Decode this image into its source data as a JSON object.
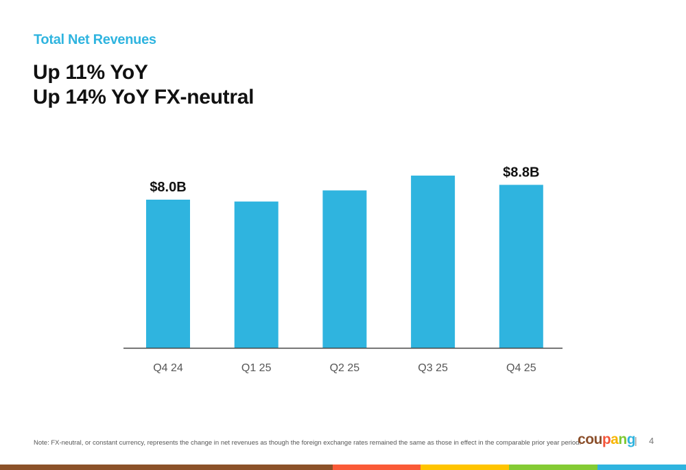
{
  "header": {
    "kicker": "Total Net Revenues",
    "headline_lines": [
      "Up 11% YoY",
      "Up 14% YoY FX-neutral"
    ]
  },
  "chart_data": {
    "type": "bar",
    "title": "Total Net Revenues",
    "categories": [
      "Q4 24",
      "Q1 25",
      "Q2 25",
      "Q3 25",
      "Q4 25"
    ],
    "values": [
      8.0,
      7.9,
      8.5,
      9.3,
      8.8
    ],
    "unit": "$B",
    "data_labels": [
      "$8.0B",
      "",
      "",
      "",
      "$8.8B"
    ],
    "xlabel": "",
    "ylabel": "",
    "ylim": [
      0,
      10
    ],
    "grid": false,
    "bar_color": "#2fb4df"
  },
  "footer": {
    "note": "Note: FX-neutral, or constant currency, represents the change in net revenues as though the foreign exchange rates remained the same as those in effect in the comparable prior year period.",
    "logo_letters": [
      {
        "ch": "c",
        "color": "#8b4f2b"
      },
      {
        "ch": "o",
        "color": "#8b4f2b"
      },
      {
        "ch": "u",
        "color": "#8b4f2b"
      },
      {
        "ch": "p",
        "color": "#f4553a"
      },
      {
        "ch": "a",
        "color": "#f7b500"
      },
      {
        "ch": "n",
        "color": "#7ec832"
      },
      {
        "ch": "g",
        "color": "#2fb4df"
      }
    ],
    "separator": "|",
    "page_number": "4"
  },
  "colors": {
    "stripe": [
      "#8b5128",
      "#fa5a37",
      "#ffc400",
      "#84cb34",
      "#2fb4df"
    ]
  }
}
